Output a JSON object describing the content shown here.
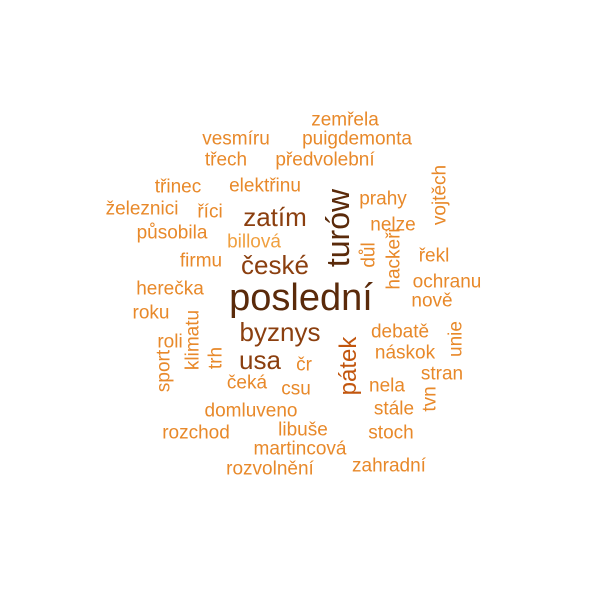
{
  "wordcloud": {
    "palette": {
      "darkest": "#5a2a0a",
      "dark": "#8b3f0f",
      "mid": "#c2560e",
      "light": "#e8892a",
      "lightest": "#f0a040"
    },
    "words": [
      {
        "id": "posledni",
        "text": "poslední",
        "tone": "darkest",
        "rot": 0
      },
      {
        "id": "turow",
        "text": "turów",
        "tone": "darkest",
        "rot": 90
      },
      {
        "id": "zatim",
        "text": "zatím",
        "tone": "dark",
        "rot": 0
      },
      {
        "id": "ceske",
        "text": "české",
        "tone": "dark",
        "rot": 0
      },
      {
        "id": "byznys",
        "text": "byznys",
        "tone": "dark",
        "rot": 0
      },
      {
        "id": "usa",
        "text": "usa",
        "tone": "dark",
        "rot": 0
      },
      {
        "id": "patek",
        "text": "pátek",
        "tone": "mid",
        "rot": 90
      },
      {
        "id": "zemrela",
        "text": "zemřela",
        "tone": "light",
        "rot": 0
      },
      {
        "id": "vesmiru",
        "text": "vesmíru",
        "tone": "light",
        "rot": 0
      },
      {
        "id": "puigdemonta",
        "text": "puigdemonta",
        "tone": "light",
        "rot": 0
      },
      {
        "id": "trech",
        "text": "třech",
        "tone": "light",
        "rot": 0
      },
      {
        "id": "predvolebni",
        "text": "předvolební",
        "tone": "light",
        "rot": 0
      },
      {
        "id": "trinec",
        "text": "třinec",
        "tone": "light",
        "rot": 0
      },
      {
        "id": "elektrinu",
        "text": "elektřinu",
        "tone": "light",
        "rot": 0
      },
      {
        "id": "zeleznici",
        "text": "železnici",
        "tone": "light",
        "rot": 0
      },
      {
        "id": "rici",
        "text": "říci",
        "tone": "light",
        "rot": 0
      },
      {
        "id": "prahy",
        "text": "prahy",
        "tone": "light",
        "rot": 0
      },
      {
        "id": "vojtech",
        "text": "vojtěch",
        "tone": "light",
        "rot": 90
      },
      {
        "id": "pusobila",
        "text": "působila",
        "tone": "light",
        "rot": 0
      },
      {
        "id": "billova",
        "text": "billová",
        "tone": "lightest",
        "rot": 0
      },
      {
        "id": "nelze",
        "text": "nelze",
        "tone": "light",
        "rot": 0
      },
      {
        "id": "firmu",
        "text": "firmu",
        "tone": "light",
        "rot": 0
      },
      {
        "id": "dul",
        "text": "důl",
        "tone": "light",
        "rot": 90
      },
      {
        "id": "hackeri",
        "text": "hackeři",
        "tone": "light",
        "rot": 90
      },
      {
        "id": "rekl",
        "text": "řekl",
        "tone": "light",
        "rot": 0
      },
      {
        "id": "ochranu",
        "text": "ochranu",
        "tone": "light",
        "rot": 0
      },
      {
        "id": "herecka",
        "text": "herečka",
        "tone": "light",
        "rot": 0
      },
      {
        "id": "nove",
        "text": "nově",
        "tone": "light",
        "rot": 0
      },
      {
        "id": "roku",
        "text": "roku",
        "tone": "light",
        "rot": 0
      },
      {
        "id": "klimatu",
        "text": "klimatu",
        "tone": "light",
        "rot": 90
      },
      {
        "id": "debate",
        "text": "debatě",
        "tone": "light",
        "rot": 0
      },
      {
        "id": "unie",
        "text": "unie",
        "tone": "light",
        "rot": 90
      },
      {
        "id": "roli",
        "text": "roli",
        "tone": "light",
        "rot": 0
      },
      {
        "id": "trh",
        "text": "trh",
        "tone": "light",
        "rot": 90
      },
      {
        "id": "naskok",
        "text": "náskok",
        "tone": "light",
        "rot": 0
      },
      {
        "id": "sport",
        "text": "sport",
        "tone": "light",
        "rot": 90
      },
      {
        "id": "cr",
        "text": "čr",
        "tone": "light",
        "rot": 0
      },
      {
        "id": "stran",
        "text": "stran",
        "tone": "light",
        "rot": 0
      },
      {
        "id": "ceka",
        "text": "čeká",
        "tone": "light",
        "rot": 0
      },
      {
        "id": "csu",
        "text": "csu",
        "tone": "light",
        "rot": 0
      },
      {
        "id": "nela",
        "text": "nela",
        "tone": "light",
        "rot": 0
      },
      {
        "id": "tvn",
        "text": "tvn",
        "tone": "light",
        "rot": 90
      },
      {
        "id": "domluveno",
        "text": "domluveno",
        "tone": "light",
        "rot": 0
      },
      {
        "id": "stale",
        "text": "stále",
        "tone": "light",
        "rot": 0
      },
      {
        "id": "libuse",
        "text": "libuše",
        "tone": "light",
        "rot": 0
      },
      {
        "id": "rozchod",
        "text": "rozchod",
        "tone": "light",
        "rot": 0
      },
      {
        "id": "stoch",
        "text": "stoch",
        "tone": "light",
        "rot": 0
      },
      {
        "id": "martincova",
        "text": "martincová",
        "tone": "light",
        "rot": 0
      },
      {
        "id": "rozvolneni",
        "text": "rozvolnění",
        "tone": "light",
        "rot": 0
      },
      {
        "id": "zahradni",
        "text": "zahradní",
        "tone": "light",
        "rot": 0
      }
    ]
  }
}
